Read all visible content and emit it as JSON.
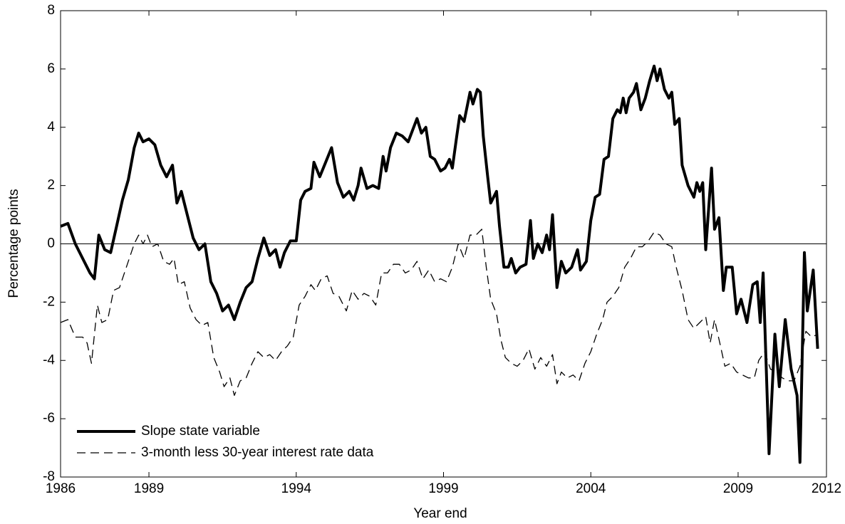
{
  "chart_data": {
    "type": "line",
    "xlabel": "Year end",
    "ylabel": "Percentage points",
    "xlim": [
      1986,
      2012
    ],
    "xticks": [
      1986,
      1989,
      1994,
      1999,
      2004,
      2009,
      2012
    ],
    "ylim": [
      -8,
      8
    ],
    "yticks": [
      -8,
      -6,
      -4,
      -2,
      0,
      2,
      4,
      6,
      8
    ],
    "zero_line": true,
    "legend": "lower left",
    "series": [
      {
        "name": "Slope state variable",
        "color": "#000000",
        "style": "solid",
        "x": [
          1986.0,
          1986.25,
          1986.5,
          1986.75,
          1987.0,
          1987.15,
          1987.3,
          1987.5,
          1987.7,
          1987.9,
          1988.1,
          1988.3,
          1988.5,
          1988.65,
          1988.8,
          1989.0,
          1989.2,
          1989.4,
          1989.6,
          1989.8,
          1989.95,
          1990.1,
          1990.3,
          1990.5,
          1990.7,
          1990.9,
          1991.1,
          1991.3,
          1991.5,
          1991.7,
          1991.9,
          1992.1,
          1992.3,
          1992.5,
          1992.7,
          1992.9,
          1993.1,
          1993.3,
          1993.45,
          1993.6,
          1993.8,
          1994.0,
          1994.15,
          1994.3,
          1994.5,
          1994.6,
          1994.8,
          1995.0,
          1995.2,
          1995.4,
          1995.6,
          1995.8,
          1995.95,
          1996.1,
          1996.2,
          1996.4,
          1996.6,
          1996.8,
          1996.95,
          1997.05,
          1997.2,
          1997.4,
          1997.6,
          1997.8,
          1997.95,
          1998.1,
          1998.25,
          1998.4,
          1998.55,
          1998.7,
          1998.9,
          1999.05,
          1999.2,
          1999.3,
          1999.45,
          1999.55,
          1999.7,
          1999.9,
          2000.0,
          2000.15,
          2000.25,
          2000.35,
          2000.5,
          2000.6,
          2000.8,
          2000.9,
          2001.05,
          2001.2,
          2001.3,
          2001.45,
          2001.6,
          2001.8,
          2001.95,
          2002.05,
          2002.2,
          2002.35,
          2002.5,
          2002.6,
          2002.7,
          2002.85,
          2003.0,
          2003.15,
          2003.35,
          2003.55,
          2003.65,
          2003.85,
          2004.0,
          2004.15,
          2004.3,
          2004.45,
          2004.6,
          2004.75,
          2004.9,
          2005.0,
          2005.1,
          2005.2,
          2005.3,
          2005.45,
          2005.55,
          2005.7,
          2005.85,
          2006.0,
          2006.15,
          2006.25,
          2006.35,
          2006.5,
          2006.65,
          2006.75,
          2006.85,
          2007.0,
          2007.1,
          2007.3,
          2007.5,
          2007.6,
          2007.7,
          2007.8,
          2007.9,
          2008.1,
          2008.2,
          2008.35,
          2008.5,
          2008.6,
          2008.8,
          2008.95,
          2009.1,
          2009.3,
          2009.5,
          2009.65,
          2009.75,
          2009.85,
          2010.05,
          2010.25,
          2010.4,
          2010.6,
          2010.8,
          2011.0,
          2011.1,
          2011.25,
          2011.35,
          2011.55,
          2011.7
        ],
        "values": [
          0.6,
          0.7,
          0.0,
          -0.5,
          -1.0,
          -1.2,
          0.3,
          -0.2,
          -0.3,
          0.6,
          1.5,
          2.2,
          3.3,
          3.8,
          3.5,
          3.6,
          3.4,
          2.7,
          2.3,
          2.7,
          1.4,
          1.8,
          1.0,
          0.2,
          -0.2,
          0.0,
          -1.3,
          -1.7,
          -2.3,
          -2.1,
          -2.6,
          -2.0,
          -1.5,
          -1.3,
          -0.5,
          0.2,
          -0.4,
          -0.2,
          -0.8,
          -0.3,
          0.1,
          0.1,
          1.5,
          1.8,
          1.9,
          2.8,
          2.3,
          2.8,
          3.3,
          2.1,
          1.6,
          1.8,
          1.5,
          2.0,
          2.6,
          1.9,
          2.0,
          1.9,
          3.0,
          2.5,
          3.3,
          3.8,
          3.7,
          3.5,
          3.9,
          4.3,
          3.8,
          4.0,
          3.0,
          2.9,
          2.5,
          2.6,
          2.9,
          2.6,
          3.7,
          4.4,
          4.2,
          5.2,
          4.8,
          5.3,
          5.2,
          3.7,
          2.3,
          1.4,
          1.8,
          0.6,
          -0.8,
          -0.8,
          -0.5,
          -1.0,
          -0.8,
          -0.7,
          0.8,
          -0.5,
          0.0,
          -0.3,
          0.3,
          -0.2,
          1.0,
          -1.5,
          -0.6,
          -1.0,
          -0.8,
          -0.2,
          -0.9,
          -0.6,
          0.8,
          1.6,
          1.7,
          2.9,
          3.0,
          4.3,
          4.6,
          4.5,
          5.0,
          4.5,
          5.0,
          5.2,
          5.5,
          4.6,
          5.0,
          5.6,
          6.1,
          5.6,
          6.0,
          5.3,
          5.0,
          5.2,
          4.1,
          4.3,
          2.7,
          2.0,
          1.6,
          2.1,
          1.8,
          2.1,
          -0.2,
          2.6,
          0.5,
          0.9,
          -1.6,
          -0.8,
          -0.8,
          -2.4,
          -1.9,
          -2.7,
          -1.4,
          -1.3,
          -2.7,
          -1.0,
          -7.2,
          -3.1,
          -4.9,
          -2.6,
          -4.3,
          -5.2,
          -7.5,
          -0.3,
          -2.3,
          -0.9,
          -3.6
        ]
      },
      {
        "name": "3-month less 30-year interest rate data",
        "color": "#000000",
        "style": "dashed",
        "x": [
          1986.0,
          1986.25,
          1986.5,
          1986.75,
          1986.9,
          1987.05,
          1987.25,
          1987.4,
          1987.6,
          1987.8,
          1988.0,
          1988.3,
          1988.5,
          1988.65,
          1988.8,
          1988.95,
          1989.1,
          1989.3,
          1989.5,
          1989.7,
          1989.85,
          1990.0,
          1990.2,
          1990.4,
          1990.6,
          1990.8,
          1991.0,
          1991.2,
          1991.4,
          1991.55,
          1991.75,
          1991.9,
          1992.1,
          1992.3,
          1992.5,
          1992.7,
          1992.9,
          1993.1,
          1993.3,
          1993.5,
          1993.7,
          1993.9,
          1994.1,
          1994.3,
          1994.5,
          1994.65,
          1994.85,
          1995.05,
          1995.25,
          1995.45,
          1995.7,
          1995.9,
          1996.1,
          1996.3,
          1996.5,
          1996.7,
          1996.9,
          1997.1,
          1997.3,
          1997.5,
          1997.7,
          1997.9,
          1998.1,
          1998.3,
          1998.5,
          1998.7,
          1998.9,
          1999.1,
          1999.3,
          1999.5,
          1999.7,
          1999.9,
          2000.1,
          2000.3,
          2000.45,
          2000.6,
          2000.8,
          2000.95,
          2001.1,
          2001.3,
          2001.5,
          2001.7,
          2001.9,
          2002.1,
          2002.3,
          2002.5,
          2002.7,
          2002.85,
          2003.0,
          2003.2,
          2003.4,
          2003.6,
          2003.8,
          2004.0,
          2004.2,
          2004.4,
          2004.55,
          2004.75,
          2004.95,
          2005.15,
          2005.35,
          2005.55,
          2005.75,
          2005.95,
          2006.15,
          2006.35,
          2006.55,
          2006.75,
          2006.9,
          2007.1,
          2007.3,
          2007.5,
          2007.7,
          2007.9,
          2008.05,
          2008.2,
          2008.4,
          2008.55,
          2008.75,
          2008.95,
          2009.15,
          2009.35,
          2009.55,
          2009.7,
          2009.9,
          2010.1,
          2010.3,
          2010.5,
          2010.7,
          2010.9,
          2011.1,
          2011.3,
          2011.5,
          2011.7
        ],
        "values": [
          -2.7,
          -2.6,
          -3.2,
          -3.2,
          -3.4,
          -4.1,
          -2.1,
          -2.7,
          -2.6,
          -1.6,
          -1.5,
          -0.6,
          0.0,
          0.3,
          0.0,
          0.3,
          -0.1,
          0.0,
          -0.6,
          -0.7,
          -0.5,
          -1.4,
          -1.3,
          -2.2,
          -2.6,
          -2.8,
          -2.7,
          -3.9,
          -4.4,
          -4.9,
          -4.6,
          -5.2,
          -4.7,
          -4.6,
          -4.1,
          -3.7,
          -3.9,
          -3.8,
          -4.0,
          -3.7,
          -3.5,
          -3.2,
          -2.1,
          -1.8,
          -1.4,
          -1.6,
          -1.2,
          -1.1,
          -1.7,
          -1.8,
          -2.3,
          -1.6,
          -1.9,
          -1.7,
          -1.8,
          -2.1,
          -1.0,
          -1.0,
          -0.7,
          -0.7,
          -1.0,
          -0.9,
          -0.6,
          -1.2,
          -0.9,
          -1.3,
          -1.2,
          -1.3,
          -0.8,
          0.0,
          -0.5,
          0.3,
          0.3,
          0.5,
          -0.8,
          -1.9,
          -2.4,
          -3.3,
          -3.9,
          -4.1,
          -4.2,
          -4.0,
          -3.6,
          -4.3,
          -3.9,
          -4.2,
          -3.8,
          -4.8,
          -4.4,
          -4.6,
          -4.5,
          -4.7,
          -4.1,
          -3.7,
          -3.1,
          -2.6,
          -2.0,
          -1.8,
          -1.5,
          -0.8,
          -0.5,
          -0.1,
          -0.1,
          0.1,
          0.4,
          0.3,
          0.0,
          -0.1,
          -0.8,
          -1.6,
          -2.6,
          -2.9,
          -2.7,
          -2.5,
          -3.4,
          -2.6,
          -3.5,
          -4.2,
          -4.1,
          -4.4,
          -4.5,
          -4.6,
          -4.6,
          -4.0,
          -3.7,
          -4.3,
          -4.4,
          -4.6,
          -4.7,
          -4.7,
          -4.2,
          -3.0,
          -3.2,
          -3.1
        ]
      }
    ]
  }
}
